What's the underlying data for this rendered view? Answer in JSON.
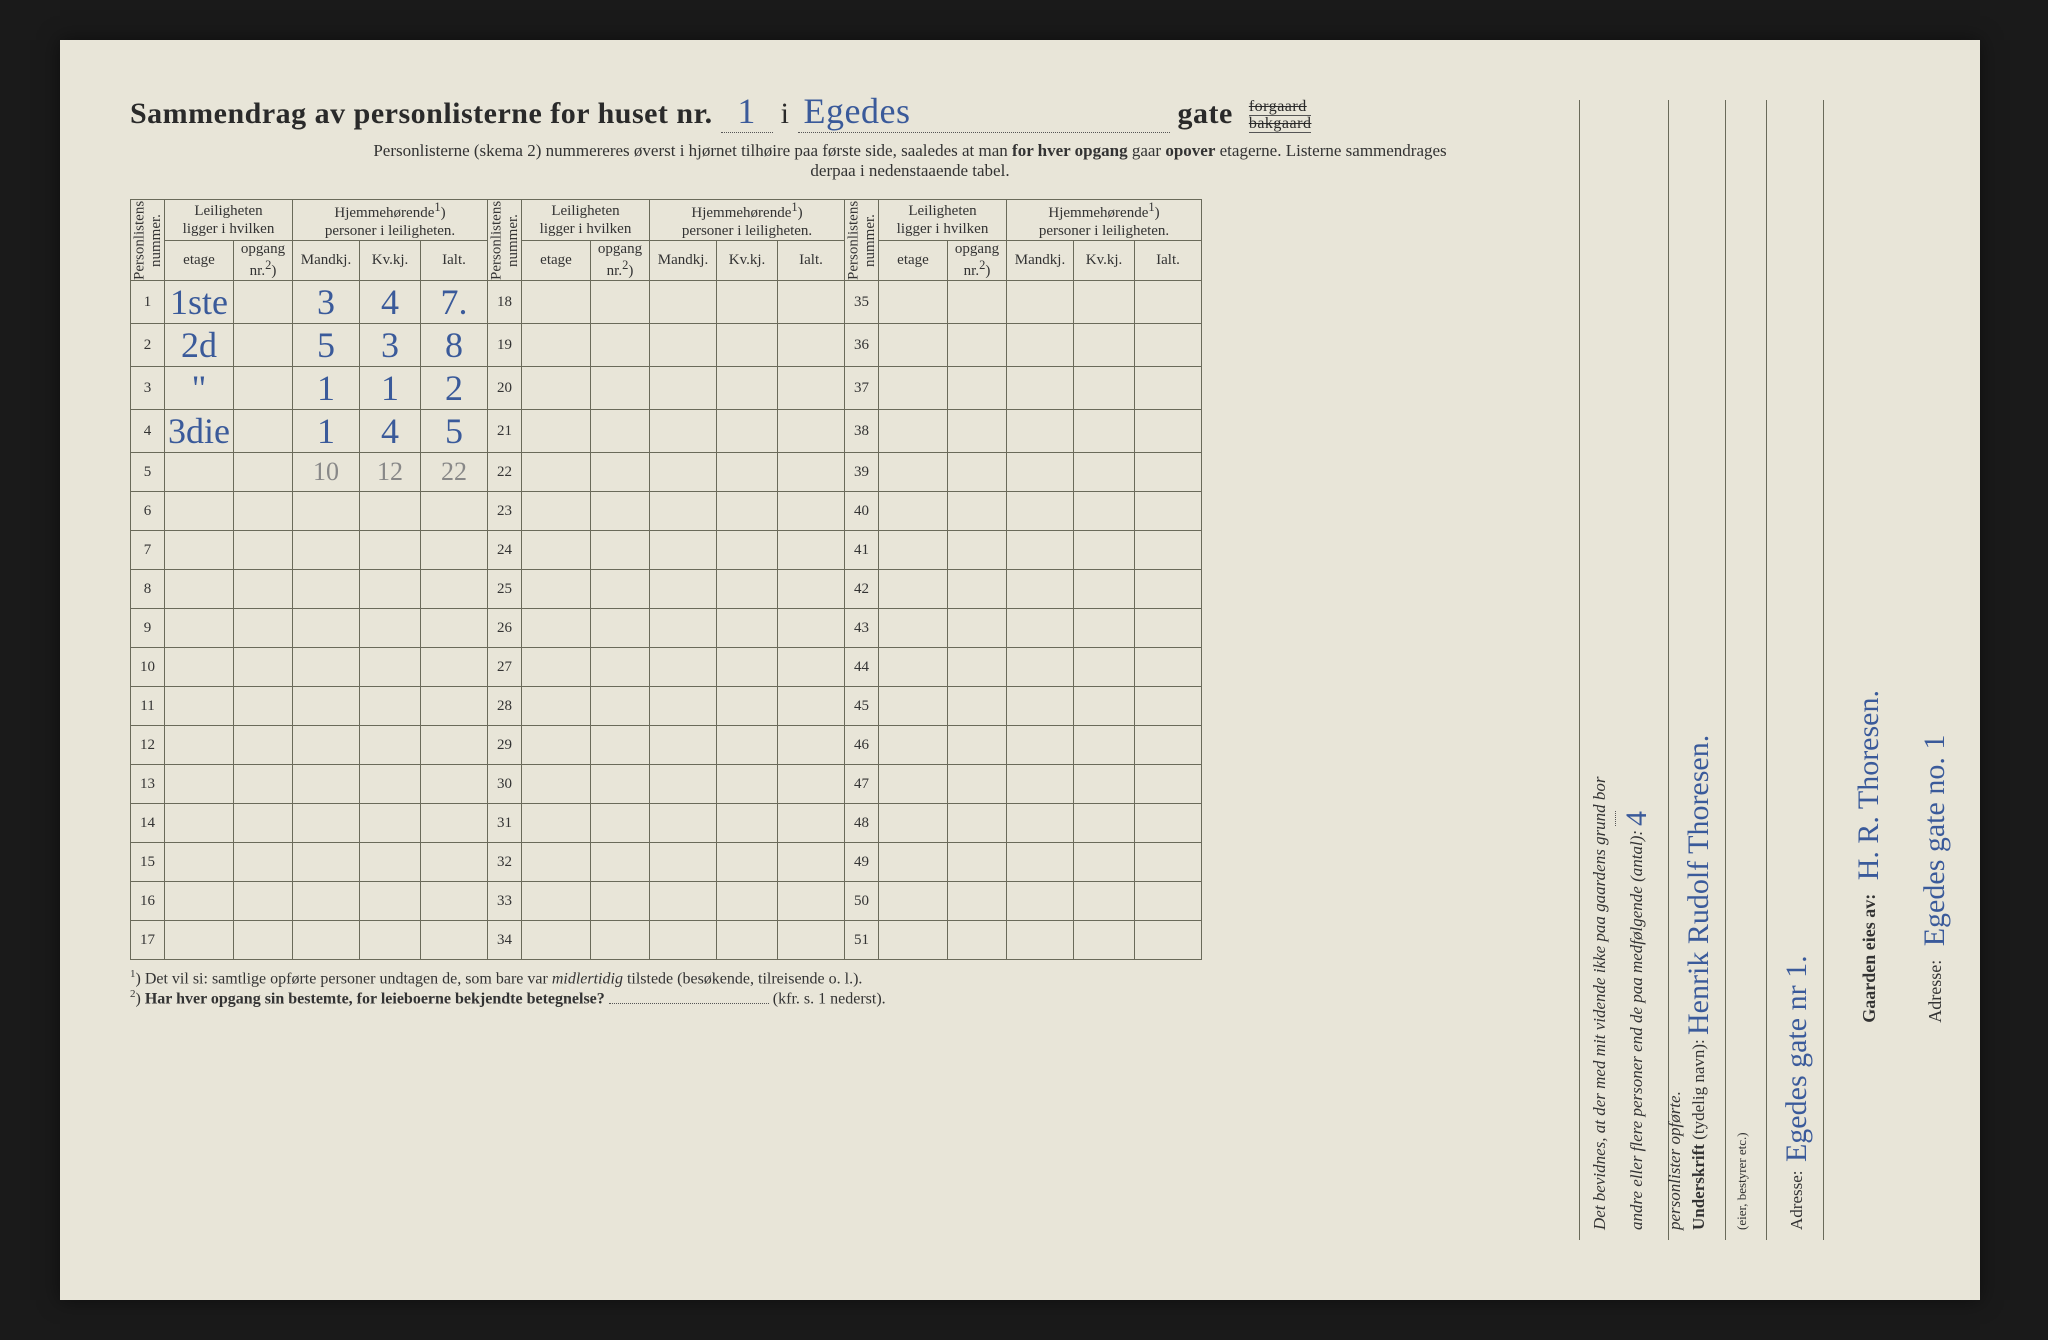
{
  "header": {
    "title_prefix": "Sammendrag av personlisterne for huset nr.",
    "house_nr": "1",
    "middle_word": "i",
    "street": "Egedes",
    "gate_word": "gate",
    "gate_opt_top": "forgaard",
    "gate_opt_bottom": "bakgaard",
    "subtitle_a": "Personlisterne (skema 2) nummereres øverst i hjørnet tilhøire paa første side, saaledes at man ",
    "subtitle_b": "for hver opgang",
    "subtitle_c": " gaar ",
    "subtitle_d": "opover",
    "subtitle_e": " etagerne.   Listerne sammendrages",
    "subtitle_f": "derpaa i nedenstaaende tabel."
  },
  "columns": {
    "personlistens": "Personlistens\nnummer.",
    "leilighet_group": "Leiligheten\nligger i hvilken",
    "hjemme_group_a": "Hjemmehørende",
    "hjemme_group_sup": "1",
    "hjemme_group_b": ")\npersoner i leiligheten.",
    "etage": "etage",
    "opgang_a": "opgang",
    "opgang_b": "nr.",
    "opgang_sup": "2",
    "opgang_c": ")",
    "mandkj": "Mandkj.",
    "kvkj": "Kv.kj.",
    "ialt": "Ialt."
  },
  "rows_block1": [
    {
      "n": "1",
      "etage": "1ste",
      "opg": "",
      "m": "3",
      "k": "4",
      "i": "7."
    },
    {
      "n": "2",
      "etage": "2d",
      "opg": "",
      "m": "5",
      "k": "3",
      "i": "8"
    },
    {
      "n": "3",
      "etage": "\"",
      "opg": "",
      "m": "1",
      "k": "1",
      "i": "2"
    },
    {
      "n": "4",
      "etage": "3die",
      "opg": "",
      "m": "1",
      "k": "4",
      "i": "5"
    },
    {
      "n": "5",
      "etage": "",
      "opg": "",
      "m": "10",
      "k": "12",
      "i": "22",
      "pencil": true
    },
    {
      "n": "6"
    },
    {
      "n": "7"
    },
    {
      "n": "8"
    },
    {
      "n": "9"
    },
    {
      "n": "10"
    },
    {
      "n": "11"
    },
    {
      "n": "12"
    },
    {
      "n": "13"
    },
    {
      "n": "14"
    },
    {
      "n": "15"
    },
    {
      "n": "16"
    },
    {
      "n": "17"
    }
  ],
  "rows_block2_start": 18,
  "rows_block2_end": 34,
  "rows_block3_start": 35,
  "rows_block3_end": 51,
  "footnotes": {
    "f1_sup": "1",
    "f1_a": ")  Det vil si: samtlige opførte personer undtagen de, som bare var ",
    "f1_b": "midlertidig",
    "f1_c": " tilstede (besøkende, tilreisende o. l.).",
    "f2_sup": "2",
    "f2_a": ")  ",
    "f2_b": "Har hver opgang sin bestemte, for leieboerne bekjendte betegnelse?",
    "f2_c": " ",
    "f2_line": "",
    "f2_d": "(kfr. s. 1 nederst)."
  },
  "right": {
    "bevidnes_a": "Det bevidnes, at der med mit vidende ikke paa gaardens grund bor",
    "bevidnes_b": "andre eller flere personer end de paa medfølgende (antal):",
    "antal": "4",
    "bevidnes_c": "personlister opførte.",
    "underskrift_label": "Underskrift",
    "underskrift_paren": " (tydelig navn): ",
    "underskrift_val": "Henrik Rudolf Thoresen.",
    "eier_bestyrer": "(eier, bestyrer etc.)",
    "adresse_label": "Adresse:",
    "adresse_val": "Egedes gate nr 1."
  },
  "right2": {
    "gaarden_label": "Gaarden eies av:",
    "gaarden_val": "H. R. Thoresen.",
    "adresse_label": "Adresse:",
    "adresse_val": "Egedes gate no. 1"
  },
  "style": {
    "ink_color": "#3a5a9a",
    "pencil_color": "#888888",
    "paper_color": "#e8e5d8",
    "rule_color": "#6a6a5a"
  }
}
